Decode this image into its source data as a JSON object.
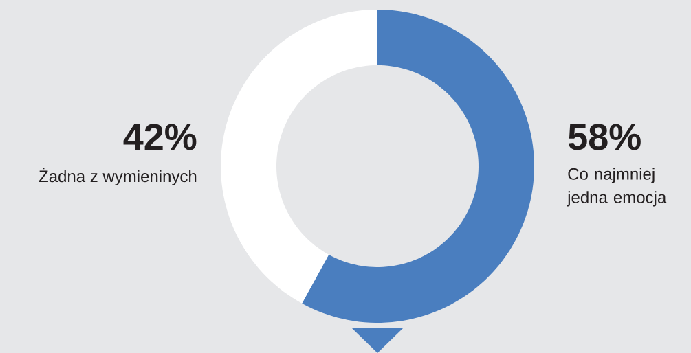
{
  "chart_data": {
    "type": "donut",
    "categories": [
      "Co najmniej jedna emocja",
      "Żadna z wymieninych"
    ],
    "values": [
      58,
      42
    ],
    "colors": [
      "#4a7ebf",
      "#ffffff"
    ],
    "value_labels": [
      "58%",
      "42%"
    ]
  }
}
